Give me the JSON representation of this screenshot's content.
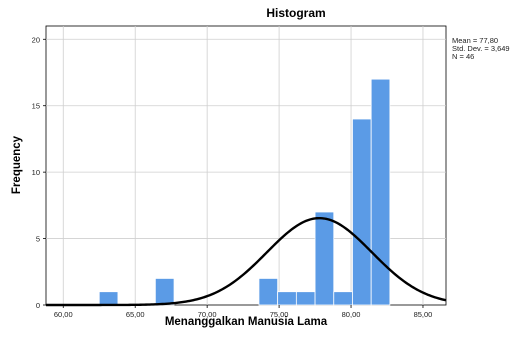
{
  "chart_data": {
    "type": "bar",
    "title": "Histogram",
    "xlabel": "Menanggalkan Manusia Lama",
    "ylabel": "Frequency",
    "xlim": [
      58.8,
      86.6
    ],
    "ylim": [
      0,
      21
    ],
    "x_ticks": [
      60,
      65,
      70,
      75,
      80,
      85
    ],
    "x_tick_labels": [
      "60,00",
      "65,00",
      "70,00",
      "75,00",
      "80,00",
      "85,00"
    ],
    "y_ticks": [
      0,
      5,
      10,
      15,
      20
    ],
    "y_tick_labels": [
      "0",
      "5",
      "10",
      "15",
      "20"
    ],
    "grid": true,
    "bars": [
      {
        "x0": 62.5,
        "x1": 63.8,
        "count": 1
      },
      {
        "x0": 66.4,
        "x1": 67.7,
        "count": 2
      },
      {
        "x0": 73.6,
        "x1": 74.9,
        "count": 2
      },
      {
        "x0": 74.9,
        "x1": 76.2,
        "count": 1
      },
      {
        "x0": 76.2,
        "x1": 77.5,
        "count": 1
      },
      {
        "x0": 77.5,
        "x1": 78.8,
        "count": 7
      },
      {
        "x0": 78.8,
        "x1": 80.1,
        "count": 1
      },
      {
        "x0": 80.1,
        "x1": 81.4,
        "count": 14
      },
      {
        "x0": 81.4,
        "x1": 82.7,
        "count": 17
      }
    ],
    "normal_curve": {
      "mean": 77.8,
      "std": 3.649,
      "n": 46,
      "bin_width": 1.3
    },
    "bar_color": "#5b9be6",
    "bar_edge_color": "#ffffff",
    "curve_color": "#000000",
    "stats": [
      "Mean = 77,80",
      "Std. Dev. = 3,649",
      "N = 46"
    ]
  }
}
